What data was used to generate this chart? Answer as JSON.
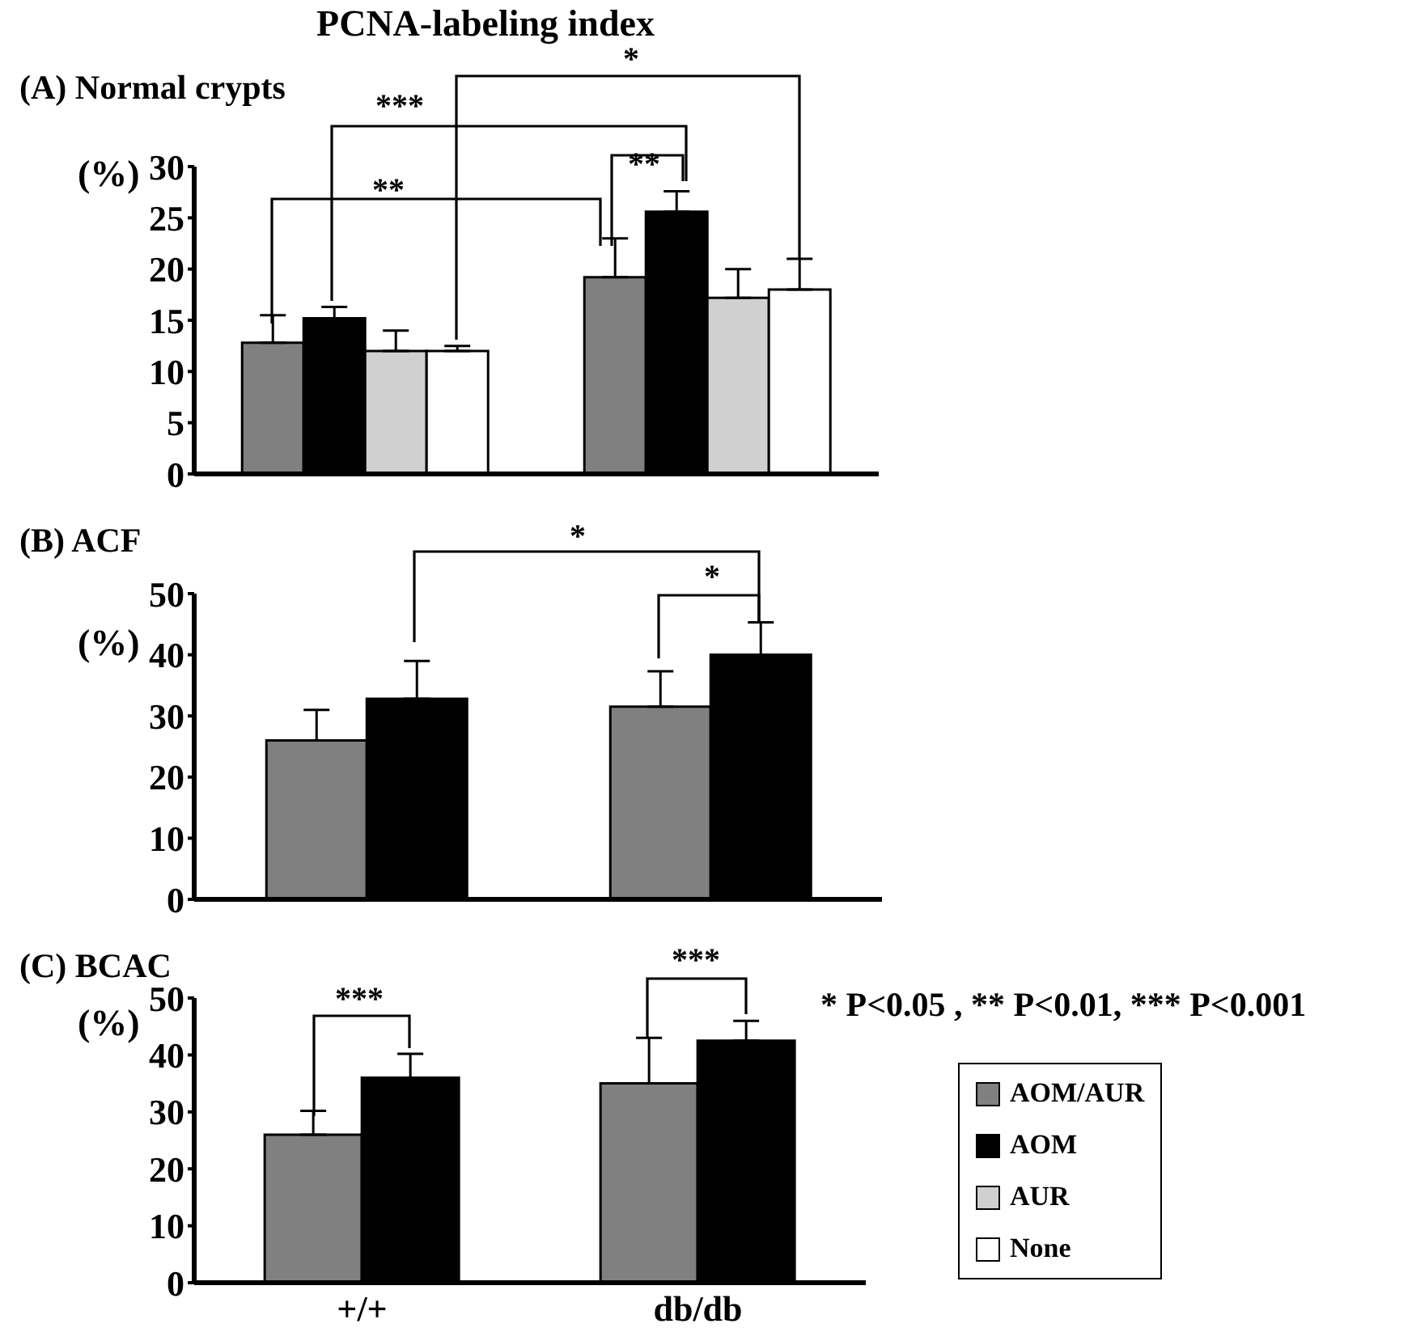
{
  "chart_data": [
    {
      "type": "bar",
      "title": "PCNA-labeling index",
      "subtitle": "(A) Normal crypts",
      "ylabel": "(%)",
      "categories": [
        null,
        null
      ],
      "tick_labels": "y",
      "ylim": [
        0,
        30
      ],
      "yticks": [
        0,
        5,
        10,
        15,
        20,
        25,
        30
      ],
      "legend": "bottom right",
      "series": [
        {
          "name": "AOM/AUR",
          "color": "#808080",
          "values": [
            12.8,
            19.2
          ],
          "errors": [
            [
              12.8,
              15.5
            ],
            [
              19.2,
              23.0
            ]
          ]
        },
        {
          "name": "AOM",
          "color": "#000000",
          "values": [
            15.2,
            25.6
          ],
          "errors": [
            [
              15.2,
              16.3
            ],
            [
              25.6,
              27.6
            ]
          ]
        },
        {
          "name": "AUR",
          "color": "#d0d0d0",
          "values": [
            12,
            17.2
          ],
          "errors": [
            [
              12,
              14
            ],
            [
              17.2,
              20
            ]
          ]
        },
        {
          "name": "None",
          "color": "#ffffff",
          "values": [
            12,
            18
          ],
          "errors": [
            [
              12,
              12.5
            ],
            [
              18,
              21
            ]
          ]
        }
      ],
      "annotations": [
        "***",
        "**",
        "**",
        "*"
      ]
    },
    {
      "type": "bar",
      "title": "(B) ACF",
      "ylabel": "(%)",
      "categories": [
        null,
        null
      ],
      "tick_labels": "y",
      "ylim": [
        0,
        50
      ],
      "yticks": [
        0,
        10,
        20,
        30,
        40,
        50
      ],
      "series": [
        {
          "color": "#808080",
          "values": [
            26,
            31.5
          ],
          "errors": [
            [
              26,
              31
            ],
            [
              31.5,
              37.3
            ]
          ]
        },
        {
          "color": "#000000",
          "values": [
            32.8,
            40
          ],
          "errors": [
            [
              32.8,
              39
            ],
            [
              40,
              45.3
            ]
          ]
        }
      ],
      "annotations": [
        "*",
        "*"
      ]
    },
    {
      "type": "bar",
      "title": "(C) BCAC",
      "ylabel": "(%)",
      "categories": [
        "+/+",
        "db/db"
      ],
      "ylim": [
        0,
        50
      ],
      "yticks": [
        0,
        10,
        20,
        30,
        40,
        50
      ],
      "series": [
        {
          "color": "#808080",
          "values": [
            26,
            35
          ],
          "errors": [
            [
              26,
              30.2
            ],
            [
              35,
              43
            ]
          ]
        },
        {
          "color": "#000000",
          "values": [
            36,
            42.5
          ],
          "errors": [
            [
              36,
              40.2
            ],
            [
              42.5,
              46
            ]
          ]
        }
      ],
      "annotations": [
        "***",
        "***",
        "* P<0.05 , ** P<0.01, *** P<0.001"
      ]
    }
  ]
}
